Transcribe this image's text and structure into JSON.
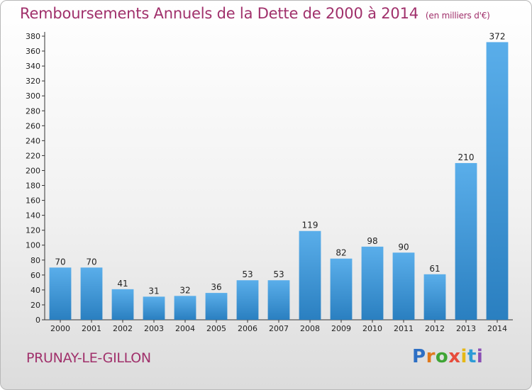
{
  "header": {
    "title": "Remboursements Annuels de la Dette de 2000 à 2014",
    "unit": "(en milliers d'€)"
  },
  "footer": {
    "town": "PRUNAY-LE-GILLON",
    "logo_letters": [
      "P",
      "r",
      "o",
      "x",
      "i",
      "t",
      "i"
    ]
  },
  "colors": {
    "title": "#a0306b",
    "bar_top": "#5aaeea",
    "bar_bottom": "#2a7fc0",
    "axis": "#333333"
  },
  "chart_data": {
    "type": "bar",
    "title": "Remboursements Annuels de la Dette de 2000 à 2014",
    "xlabel": "",
    "ylabel": "",
    "categories": [
      "2000",
      "2001",
      "2002",
      "2003",
      "2004",
      "2005",
      "2006",
      "2007",
      "2008",
      "2009",
      "2010",
      "2011",
      "2012",
      "2013",
      "2014"
    ],
    "values": [
      70,
      70,
      41,
      31,
      32,
      36,
      53,
      53,
      119,
      82,
      98,
      90,
      61,
      210,
      372
    ],
    "ylim": [
      0,
      380
    ],
    "ytick_step": 20,
    "grid": false,
    "legend": "none"
  }
}
